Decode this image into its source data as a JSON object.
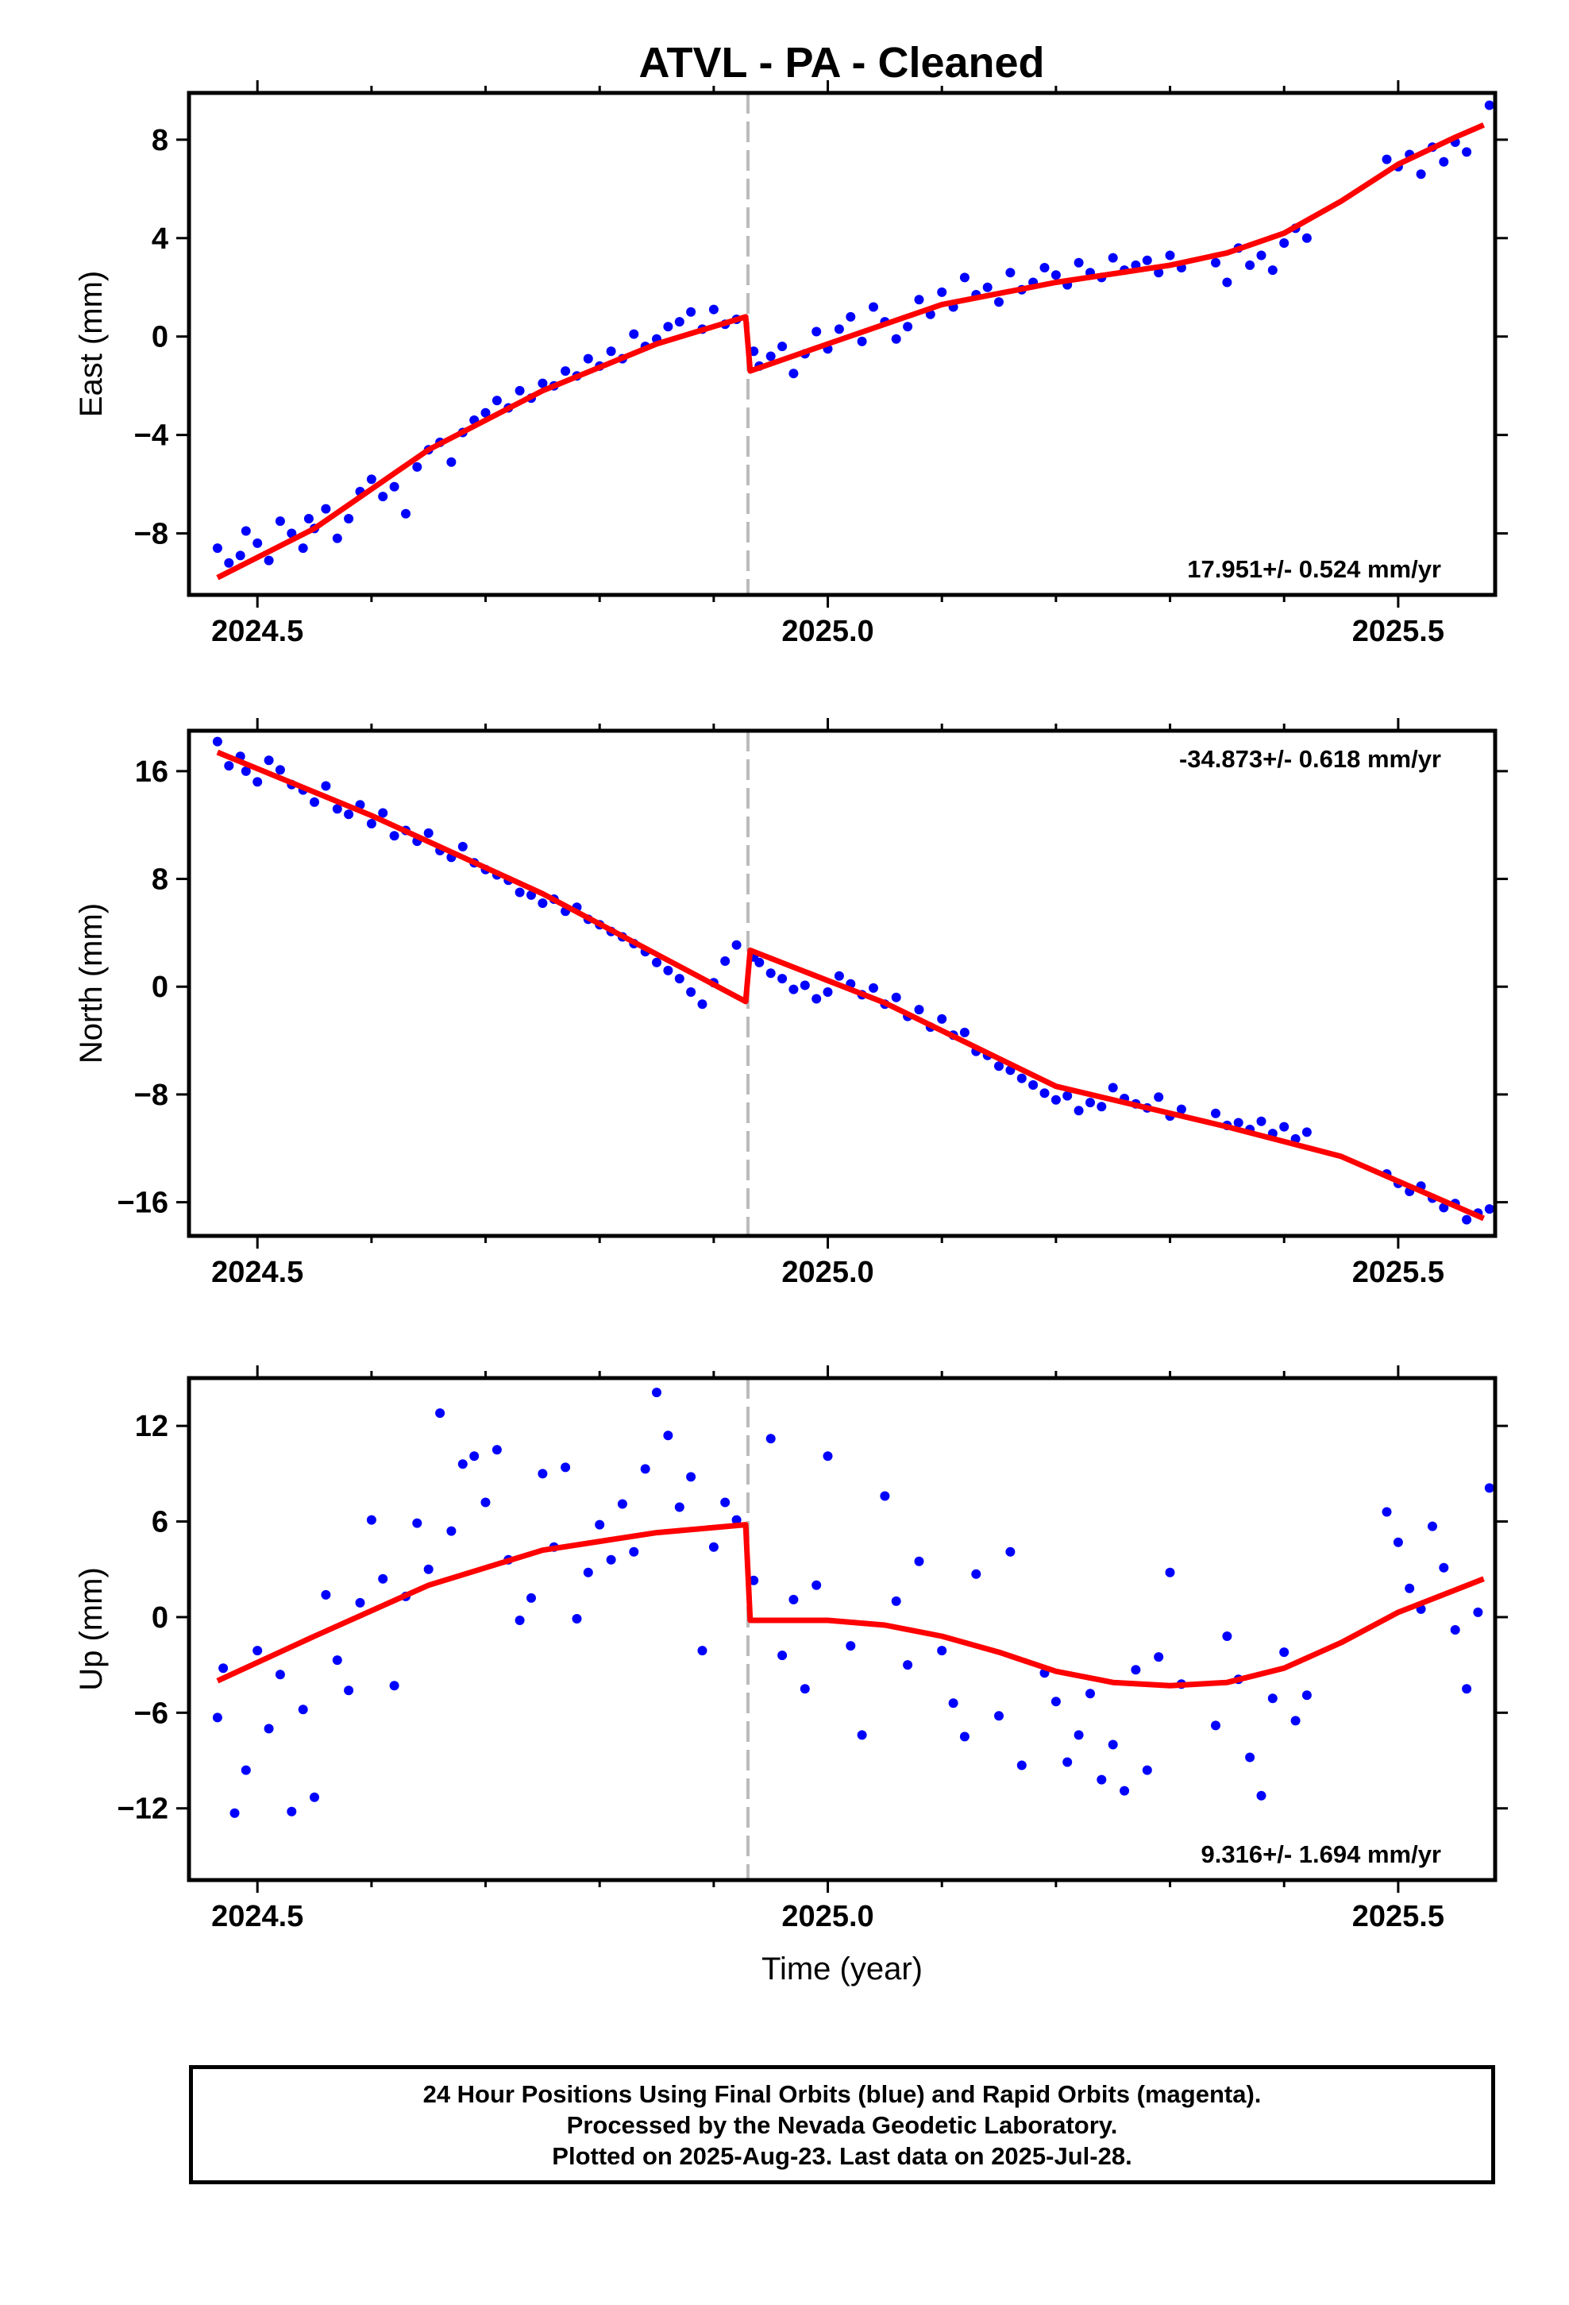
{
  "title": "ATVL  - PA - Cleaned",
  "footer": {
    "line1": "24 Hour Positions Using Final Orbits (blue) and Rapid Orbits (magenta).",
    "line2": "Processed by the Nevada Geodetic Laboratory.",
    "line3": "Plotted on 2025-Aug-23. Last data on 2025-Jul-28."
  },
  "colors": {
    "points": "#0000ff",
    "fit": "#ff0000",
    "step_line": "#bbbbbb",
    "frame": "#000000"
  },
  "chart_data": [
    {
      "type": "scatter",
      "title": "ATVL  - PA - Cleaned",
      "ylabel": "East (mm)",
      "xlabel": "",
      "xlim": [
        2024.44,
        2025.585
      ],
      "ylim": [
        -10.5,
        9.9
      ],
      "x_ticks": [
        2024.5,
        2025.0,
        2025.5
      ],
      "x_tick_labels": [
        "2024.5",
        "2025.0",
        "2025.5"
      ],
      "y_ticks": [
        8,
        4,
        0,
        -4,
        -8
      ],
      "y_tick_labels": [
        "8",
        "4",
        "0",
        "−4",
        "−8"
      ],
      "rate_text": "17.951+/- 0.524 mm/yr",
      "rate_position": "bottom-right",
      "step_epoch": 2024.93,
      "fit": {
        "x": [
          2024.465,
          2024.55,
          2024.65,
          2024.75,
          2024.85,
          2024.928,
          2024.932,
          2025.0,
          2025.1,
          2025.2,
          2025.3,
          2025.35,
          2025.4,
          2025.45,
          2025.5,
          2025.55,
          2025.575
        ],
        "y": [
          -9.8,
          -7.8,
          -4.6,
          -2.2,
          -0.3,
          0.8,
          -1.4,
          -0.3,
          1.3,
          2.2,
          2.9,
          3.4,
          4.2,
          5.5,
          7.0,
          8.1,
          8.6
        ]
      },
      "series": [
        {
          "name": "",
          "x": [
            2024.465,
            2024.475,
            2024.485,
            2024.49,
            2024.5,
            2024.51,
            2024.52,
            2024.53,
            2024.54,
            2024.545,
            2024.55,
            2024.56,
            2024.57,
            2024.58,
            2024.59,
            2024.6,
            2024.61,
            2024.62,
            2024.63,
            2024.64,
            2024.65,
            2024.66,
            2024.67,
            2024.68,
            2024.69,
            2024.7,
            2024.71,
            2024.72,
            2024.73,
            2024.74,
            2024.75,
            2024.76,
            2024.77,
            2024.78,
            2024.79,
            2024.8,
            2024.81,
            2024.82,
            2024.83,
            2024.84,
            2024.85,
            2024.86,
            2024.87,
            2024.88,
            2024.89,
            2024.9,
            2024.91,
            2024.92,
            2024.935,
            2024.94,
            2024.95,
            2024.96,
            2024.97,
            2024.98,
            2024.99,
            2025.0,
            2025.01,
            2025.02,
            2025.03,
            2025.04,
            2025.05,
            2025.06,
            2025.07,
            2025.08,
            2025.09,
            2025.1,
            2025.11,
            2025.12,
            2025.13,
            2025.14,
            2025.15,
            2025.16,
            2025.17,
            2025.18,
            2025.19,
            2025.2,
            2025.21,
            2025.22,
            2025.23,
            2025.24,
            2025.25,
            2025.26,
            2025.27,
            2025.28,
            2025.29,
            2025.3,
            2025.31,
            2025.34,
            2025.35,
            2025.36,
            2025.37,
            2025.38,
            2025.39,
            2025.4,
            2025.41,
            2025.42,
            2025.49,
            2025.5,
            2025.51,
            2025.52,
            2025.53,
            2025.54,
            2025.55,
            2025.56,
            2025.58
          ],
          "y": [
            -8.6,
            -9.2,
            -8.9,
            -7.9,
            -8.4,
            -9.1,
            -7.5,
            -8.0,
            -8.6,
            -7.4,
            -7.8,
            -7.0,
            -8.2,
            -7.4,
            -6.3,
            -5.8,
            -6.5,
            -6.1,
            -7.2,
            -5.3,
            -4.6,
            -4.3,
            -5.1,
            -3.9,
            -3.4,
            -3.1,
            -2.6,
            -2.9,
            -2.2,
            -2.5,
            -1.9,
            -2.0,
            -1.4,
            -1.6,
            -0.9,
            -1.2,
            -0.6,
            -0.9,
            0.1,
            -0.4,
            -0.1,
            0.4,
            0.6,
            1.0,
            0.3,
            1.1,
            0.5,
            0.7,
            -0.6,
            -1.2,
            -0.8,
            -0.4,
            -1.5,
            -0.7,
            0.2,
            -0.5,
            0.3,
            0.8,
            -0.2,
            1.2,
            0.6,
            -0.1,
            0.4,
            1.5,
            0.9,
            1.8,
            1.2,
            2.4,
            1.7,
            2.0,
            1.4,
            2.6,
            1.9,
            2.2,
            2.8,
            2.5,
            2.1,
            3.0,
            2.6,
            2.4,
            3.2,
            2.7,
            2.9,
            3.1,
            2.6,
            3.3,
            2.8,
            3.0,
            2.2,
            3.6,
            2.9,
            3.3,
            2.7,
            3.8,
            4.4,
            4.0,
            7.2,
            6.9,
            7.4,
            6.6,
            7.7,
            7.1,
            7.9,
            7.5,
            9.4
          ]
        }
      ]
    },
    {
      "type": "scatter",
      "title": "",
      "ylabel": "North (mm)",
      "xlabel": "",
      "xlim": [
        2024.44,
        2025.585
      ],
      "ylim": [
        -18.5,
        19.0
      ],
      "x_ticks": [
        2024.5,
        2025.0,
        2025.5
      ],
      "x_tick_labels": [
        "2024.5",
        "2025.0",
        "2025.5"
      ],
      "y_ticks": [
        16,
        8,
        0,
        -8,
        -16
      ],
      "y_tick_labels": [
        "16",
        "8",
        "0",
        "−8",
        "−16"
      ],
      "rate_text": "-34.873+/- 0.618 mm/yr",
      "rate_position": "top-right",
      "step_epoch": 2024.93,
      "fit": {
        "x": [
          2024.465,
          2024.6,
          2024.75,
          2024.928,
          2024.932,
          2025.05,
          2025.2,
          2025.35,
          2025.45,
          2025.575
        ],
        "y": [
          17.4,
          12.7,
          6.9,
          -1.1,
          2.7,
          -1.2,
          -7.4,
          -10.4,
          -12.6,
          -17.2
        ]
      },
      "series": [
        {
          "name": "",
          "x": [
            2024.465,
            2024.475,
            2024.485,
            2024.49,
            2024.5,
            2024.51,
            2024.52,
            2024.53,
            2024.54,
            2024.55,
            2024.56,
            2024.57,
            2024.58,
            2024.59,
            2024.6,
            2024.61,
            2024.62,
            2024.63,
            2024.64,
            2024.65,
            2024.66,
            2024.67,
            2024.68,
            2024.69,
            2024.7,
            2024.71,
            2024.72,
            2024.73,
            2024.74,
            2024.75,
            2024.76,
            2024.77,
            2024.78,
            2024.79,
            2024.8,
            2024.81,
            2024.82,
            2024.83,
            2024.84,
            2024.85,
            2024.86,
            2024.87,
            2024.88,
            2024.89,
            2024.9,
            2024.91,
            2024.92,
            2024.935,
            2024.94,
            2024.95,
            2024.96,
            2024.97,
            2024.98,
            2024.99,
            2025.0,
            2025.01,
            2025.02,
            2025.03,
            2025.04,
            2025.05,
            2025.06,
            2025.07,
            2025.08,
            2025.09,
            2025.1,
            2025.11,
            2025.12,
            2025.13,
            2025.14,
            2025.15,
            2025.16,
            2025.17,
            2025.18,
            2025.19,
            2025.2,
            2025.21,
            2025.22,
            2025.23,
            2025.24,
            2025.25,
            2025.26,
            2025.27,
            2025.28,
            2025.29,
            2025.3,
            2025.31,
            2025.34,
            2025.35,
            2025.36,
            2025.37,
            2025.38,
            2025.39,
            2025.4,
            2025.41,
            2025.42,
            2025.49,
            2025.5,
            2025.51,
            2025.52,
            2025.53,
            2025.54,
            2025.55,
            2025.56,
            2025.57,
            2025.58
          ],
          "y": [
            18.2,
            16.4,
            17.1,
            16.0,
            15.2,
            16.8,
            16.1,
            15.0,
            14.6,
            13.7,
            14.9,
            13.2,
            12.8,
            13.5,
            12.1,
            12.9,
            11.2,
            11.6,
            10.8,
            11.4,
            10.1,
            9.6,
            10.4,
            9.2,
            8.7,
            8.3,
            7.9,
            7.0,
            6.8,
            6.2,
            6.5,
            5.6,
            5.9,
            5.0,
            4.6,
            4.1,
            3.7,
            3.2,
            2.6,
            1.8,
            1.2,
            0.6,
            -0.4,
            -1.3,
            0.3,
            1.9,
            3.1,
            2.2,
            1.8,
            1.0,
            0.6,
            -0.2,
            0.1,
            -0.9,
            -0.4,
            0.8,
            0.2,
            -0.6,
            -0.1,
            -1.3,
            -0.8,
            -2.2,
            -1.7,
            -3.0,
            -2.4,
            -3.6,
            -3.4,
            -4.8,
            -5.1,
            -5.9,
            -6.2,
            -6.8,
            -7.3,
            -7.9,
            -8.4,
            -8.1,
            -9.2,
            -8.6,
            -8.9,
            -7.5,
            -8.3,
            -8.7,
            -9.0,
            -8.2,
            -9.6,
            -9.1,
            -9.4,
            -10.3,
            -10.1,
            -10.6,
            -10.0,
            -10.9,
            -10.4,
            -11.3,
            -10.8,
            -13.9,
            -14.6,
            -15.2,
            -14.8,
            -15.7,
            -16.4,
            -16.1,
            -17.3,
            -16.8,
            -16.5
          ]
        }
      ]
    },
    {
      "type": "scatter",
      "title": "",
      "ylabel": "Up (mm)",
      "xlabel": "Time (year)",
      "xlim": [
        2024.44,
        2025.585
      ],
      "ylim": [
        -16.5,
        15.0
      ],
      "x_ticks": [
        2024.5,
        2025.0,
        2025.5
      ],
      "x_tick_labels": [
        "2024.5",
        "2025.0",
        "2025.5"
      ],
      "y_ticks": [
        12,
        6,
        0,
        -6,
        -12
      ],
      "y_tick_labels": [
        "12",
        "6",
        "0",
        "−6",
        "−12"
      ],
      "rate_text": "9.316+/- 1.694 mm/yr",
      "rate_position": "bottom-right",
      "step_epoch": 2024.93,
      "fit": {
        "x": [
          2024.465,
          2024.55,
          2024.65,
          2024.75,
          2024.85,
          2024.928,
          2024.932,
          2025.0,
          2025.05,
          2025.1,
          2025.15,
          2025.2,
          2025.25,
          2025.3,
          2025.35,
          2025.4,
          2025.45,
          2025.5,
          2025.575
        ],
        "y": [
          -4.0,
          -1.2,
          2.0,
          4.2,
          5.3,
          5.8,
          -0.2,
          -0.2,
          -0.5,
          -1.2,
          -2.2,
          -3.4,
          -4.1,
          -4.3,
          -4.1,
          -3.2,
          -1.6,
          0.3,
          2.4
        ]
      },
      "series": [
        {
          "name": "",
          "x": [
            2024.465,
            2024.47,
            2024.48,
            2024.49,
            2024.5,
            2024.51,
            2024.52,
            2024.53,
            2024.54,
            2024.55,
            2024.56,
            2024.57,
            2024.58,
            2024.59,
            2024.6,
            2024.61,
            2024.62,
            2024.63,
            2024.64,
            2024.65,
            2024.66,
            2024.67,
            2024.68,
            2024.69,
            2024.7,
            2024.71,
            2024.72,
            2024.73,
            2024.74,
            2024.75,
            2024.76,
            2024.77,
            2024.78,
            2024.79,
            2024.8,
            2024.81,
            2024.82,
            2024.83,
            2024.84,
            2024.85,
            2024.86,
            2024.87,
            2024.88,
            2024.89,
            2024.9,
            2024.91,
            2024.92,
            2024.935,
            2024.95,
            2024.96,
            2024.97,
            2024.98,
            2024.99,
            2025.0,
            2025.02,
            2025.03,
            2025.05,
            2025.06,
            2025.07,
            2025.08,
            2025.1,
            2025.11,
            2025.12,
            2025.13,
            2025.15,
            2025.16,
            2025.17,
            2025.19,
            2025.2,
            2025.21,
            2025.22,
            2025.23,
            2025.24,
            2025.25,
            2025.26,
            2025.27,
            2025.28,
            2025.29,
            2025.3,
            2025.31,
            2025.34,
            2025.35,
            2025.36,
            2025.37,
            2025.38,
            2025.39,
            2025.4,
            2025.41,
            2025.42,
            2025.49,
            2025.5,
            2025.51,
            2025.52,
            2025.53,
            2025.54,
            2025.55,
            2025.56,
            2025.57,
            2025.58
          ],
          "y": [
            -6.3,
            -3.2,
            -12.3,
            -9.6,
            -2.1,
            -7.0,
            -3.6,
            -12.2,
            -5.8,
            -11.3,
            1.4,
            -2.7,
            -4.6,
            0.9,
            6.1,
            2.4,
            -4.3,
            1.3,
            5.9,
            3.0,
            12.8,
            5.4,
            9.6,
            10.1,
            7.2,
            10.5,
            3.6,
            -0.2,
            1.2,
            9.0,
            4.4,
            9.4,
            -0.1,
            2.8,
            5.8,
            3.6,
            7.1,
            4.1,
            9.3,
            14.1,
            11.4,
            6.9,
            8.8,
            -2.1,
            4.4,
            7.2,
            6.1,
            2.3,
            11.2,
            -2.4,
            1.1,
            -4.5,
            2.0,
            10.1,
            -1.8,
            -7.4,
            7.6,
            1.0,
            -3.0,
            3.5,
            -2.1,
            -5.4,
            -7.5,
            2.7,
            -6.2,
            4.1,
            -9.3,
            -3.5,
            -5.3,
            -9.1,
            -7.4,
            -4.8,
            -10.2,
            -8.0,
            -10.9,
            -3.3,
            -9.6,
            -2.5,
            2.8,
            -4.2,
            -6.8,
            -1.2,
            -3.9,
            -8.8,
            -11.2,
            -5.1,
            -2.2,
            -6.5,
            -4.9,
            6.6,
            4.7,
            1.8,
            0.5,
            5.7,
            3.1,
            -0.8,
            -4.5,
            0.3,
            8.1
          ]
        }
      ]
    }
  ]
}
